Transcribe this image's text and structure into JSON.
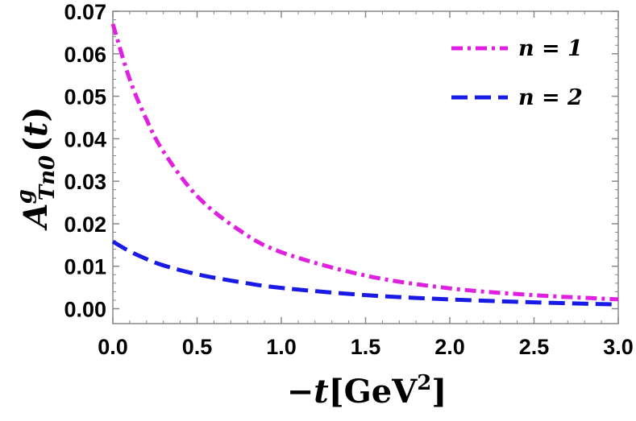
{
  "chart_data": {
    "type": "line",
    "xlabel": "−t[GeV²]",
    "ylabel": "A^g_{Tn0}(t)",
    "xlim": [
      0,
      3
    ],
    "ylim": [
      -0.0035,
      0.07
    ],
    "x_ticks": [
      "0.0",
      "0.5",
      "1.0",
      "1.5",
      "2.0",
      "2.5",
      "3.0"
    ],
    "y_ticks": [
      "0.00",
      "0.01",
      "0.02",
      "0.03",
      "0.04",
      "0.05",
      "0.06",
      "0.07"
    ],
    "legend_position": "top-right",
    "x": [
      0,
      0.1,
      0.2,
      0.3,
      0.5,
      0.75,
      1.0,
      1.5,
      2.0,
      2.5,
      3.0
    ],
    "series": [
      {
        "name": "n = 1",
        "color": "#e020e0",
        "style": "dash-dot",
        "values": [
          0.067,
          0.054,
          0.0445,
          0.037,
          0.0265,
          0.0185,
          0.0133,
          0.0078,
          0.0048,
          0.0032,
          0.0022
        ]
      },
      {
        "name": "n = 2",
        "color": "#1a1ae6",
        "style": "dashed",
        "values": [
          0.0158,
          0.0135,
          0.0117,
          0.0102,
          0.0081,
          0.0063,
          0.0049,
          0.0032,
          0.0022,
          0.0015,
          0.001
        ]
      }
    ]
  }
}
